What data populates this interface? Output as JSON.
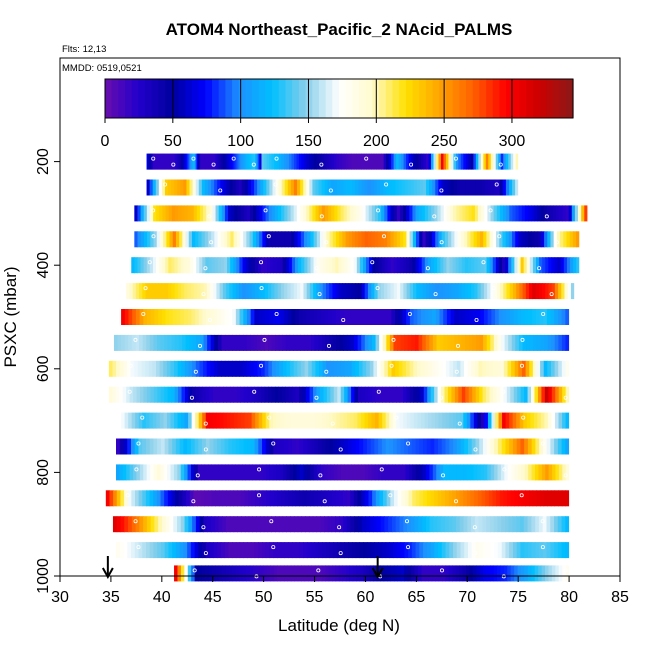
{
  "chart_data": {
    "type": "heatmap",
    "title": "ATOM4 Northeast_Pacific_2 NAcid_PALMS",
    "annotations": [
      "Flts: 12,13",
      "MMDD: 0519,0521"
    ],
    "xlabel": "Latitude (deg N)",
    "ylabel": "PSXC (mbar)",
    "xlim": [
      30,
      85
    ],
    "ylim": [
      1000,
      0
    ],
    "x_ticks": [
      "30",
      "35",
      "40",
      "45",
      "50",
      "55",
      "60",
      "65",
      "70",
      "75",
      "80",
      "85"
    ],
    "y_ticks": [
      "200",
      "400",
      "600",
      "800",
      "1000"
    ],
    "colorbar": {
      "range": [
        0,
        345
      ],
      "ticks": [
        "0",
        "50",
        "100",
        "150",
        "200",
        "250",
        "300"
      ],
      "colors": [
        "#6a0dad",
        "#2200cc",
        "#00009e",
        "#0000ff",
        "#1e90ff",
        "#00bfff",
        "#87ceeb",
        "#ffffff",
        "#fffacd",
        "#ffe000",
        "#ffa500",
        "#ff6000",
        "#ff0000",
        "#cc0000",
        "#8b1a1a"
      ]
    },
    "arrows_x": [
      34.7,
      61.2
    ],
    "layers": [
      {
        "p": 200,
        "lat_min": 38.5,
        "lat_max": 49.8,
        "values": [
          70,
          20,
          20,
          20,
          20,
          40,
          80,
          120,
          20,
          20,
          20,
          40,
          60,
          80,
          100,
          120,
          130,
          60
        ]
      },
      {
        "p": 200,
        "lat_min": 49.8,
        "lat_max": 75.0,
        "values": [
          140,
          120,
          90,
          60,
          40,
          20,
          10,
          10,
          10,
          120,
          60,
          20,
          300,
          100,
          50,
          260,
          80,
          200
        ]
      },
      {
        "p": 250,
        "lat_min": 38.5,
        "lat_max": 75.0,
        "values": [
          60,
          230,
          250,
          120,
          70,
          30,
          100,
          180,
          260,
          140,
          110,
          120,
          100,
          120,
          130,
          140,
          60,
          40,
          40,
          30,
          160
        ]
      },
      {
        "p": 300,
        "lat_min": 37.3,
        "lat_max": 81.8,
        "values": [
          60,
          220,
          250,
          240,
          190,
          60,
          30,
          90,
          140,
          190,
          250,
          210,
          180,
          130,
          20,
          110,
          150,
          200,
          220,
          150,
          90,
          70,
          40,
          20,
          280
        ]
      },
      {
        "p": 350,
        "lat_min": 37.3,
        "lat_max": 81.0,
        "values": [
          90,
          150,
          260,
          120,
          160,
          210,
          140,
          40,
          40,
          110,
          200,
          250,
          270,
          260,
          220,
          20,
          130,
          190,
          240,
          140,
          60,
          40,
          200,
          250
        ]
      },
      {
        "p": 400,
        "lat_min": 37.0,
        "lat_max": 81.0,
        "values": [
          120,
          160,
          210,
          190,
          140,
          150,
          70,
          20,
          30,
          120,
          180,
          200,
          170,
          50,
          20,
          40,
          110,
          150,
          130,
          140,
          30,
          230,
          90,
          60,
          130
        ]
      },
      {
        "p": 450,
        "lat_min": 36.5,
        "lat_max": 80.5,
        "values": [
          190,
          230,
          230,
          210,
          200,
          140,
          100,
          120,
          150,
          170,
          100,
          60,
          50,
          150,
          170,
          120,
          100,
          110,
          130,
          180,
          240,
          310,
          280,
          150
        ]
      },
      {
        "p": 500,
        "lat_min": 36.0,
        "lat_max": 80.0,
        "values": [
          300,
          240,
          220,
          210,
          190,
          170,
          60,
          70,
          40,
          30,
          20,
          20,
          20,
          90,
          110,
          60,
          70,
          100,
          120,
          130,
          90
        ]
      },
      {
        "p": 550,
        "lat_min": 35.3,
        "lat_max": 80.0,
        "values": [
          150,
          160,
          140,
          130,
          110,
          20,
          20,
          10,
          20,
          20,
          40,
          60,
          120,
          280,
          290,
          230,
          240,
          250,
          170,
          120,
          110,
          80
        ]
      },
      {
        "p": 600,
        "lat_min": 34.8,
        "lat_max": 80.0,
        "values": [
          210,
          170,
          160,
          130,
          90,
          60,
          60,
          80,
          120,
          150,
          100,
          110,
          150,
          230,
          200,
          180,
          160,
          200,
          190,
          270,
          120,
          180
        ]
      },
      {
        "p": 650,
        "lat_min": 34.8,
        "lat_max": 80.0,
        "values": [
          190,
          160,
          140,
          120,
          40,
          20,
          20,
          30,
          50,
          30,
          110,
          160,
          30,
          20,
          20,
          60,
          200,
          280,
          210,
          170,
          120,
          320,
          200
        ]
      },
      {
        "p": 700,
        "lat_min": 36.0,
        "lat_max": 80.0,
        "values": [
          170,
          130,
          150,
          110,
          300,
          290,
          280,
          200,
          190,
          190,
          200,
          210,
          240,
          170,
          160,
          150,
          140,
          30,
          300,
          230,
          200,
          120
        ]
      },
      {
        "p": 750,
        "lat_min": 35.5,
        "lat_max": 80.0,
        "values": [
          20,
          140,
          160,
          120,
          150,
          130,
          120,
          30,
          20,
          40,
          60,
          80,
          100,
          90,
          80,
          100,
          150,
          210,
          270,
          180,
          110
        ]
      },
      {
        "p": 800,
        "lat_min": 35.5,
        "lat_max": 80.0,
        "values": [
          110,
          150,
          190,
          150,
          20,
          20,
          20,
          20,
          30,
          60,
          20,
          10,
          10,
          20,
          20,
          60,
          120,
          120,
          130,
          170,
          200,
          250,
          190
        ]
      },
      {
        "p": 850,
        "lat_min": 34.5,
        "lat_max": 80.0,
        "values": [
          300,
          170,
          120,
          60,
          5,
          10,
          10,
          20,
          30,
          40,
          30,
          20,
          80,
          160,
          210,
          230,
          250,
          270,
          290,
          300,
          310,
          310
        ]
      },
      {
        "p": 900,
        "lat_min": 35.2,
        "lat_max": 80.0,
        "values": [
          310,
          260,
          200,
          150,
          30,
          10,
          10,
          10,
          10,
          10,
          20,
          60,
          80,
          100,
          130,
          140,
          160,
          150,
          140,
          170,
          120
        ]
      },
      {
        "p": 950,
        "lat_min": 35.5,
        "lat_max": 80.0,
        "values": [
          180,
          160,
          140,
          100,
          30,
          10,
          10,
          20,
          20,
          30,
          40,
          50,
          60,
          80,
          110,
          150,
          180,
          170,
          130,
          140,
          120
        ]
      },
      {
        "p": 995,
        "lat_min": 41.2,
        "lat_max": 80.0,
        "values": [
          300,
          50,
          40,
          30,
          20,
          10,
          10,
          10,
          20,
          30,
          50,
          60,
          20,
          20,
          40,
          70,
          80,
          110,
          150,
          180
        ]
      }
    ]
  }
}
